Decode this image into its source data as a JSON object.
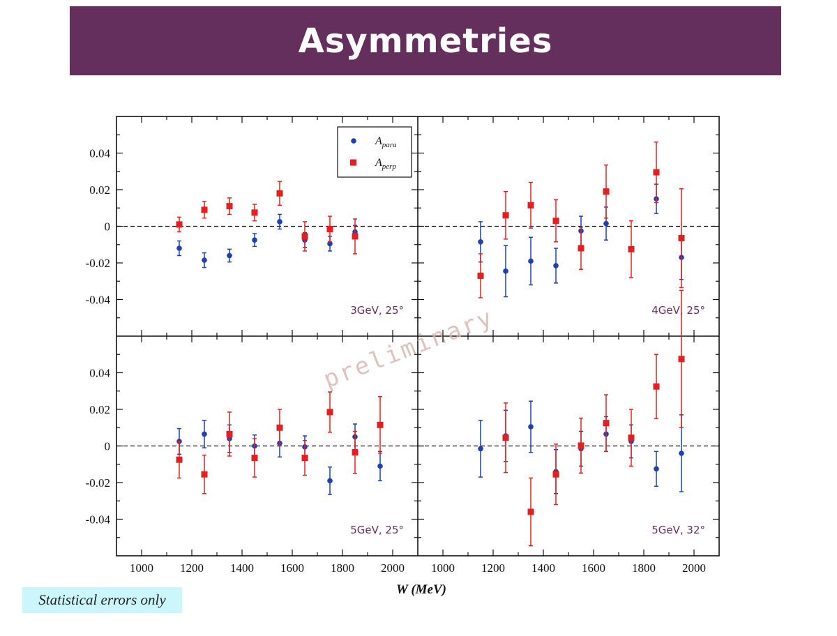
{
  "title": "Asymmetries",
  "note": "Statistical errors only",
  "watermark": "preliminary",
  "colors": {
    "banner": "#652f5d",
    "para": "#1f3fb5",
    "perp": "#e51f1f",
    "note_bg": "#cbf6fb",
    "panel_label": "#652f5d"
  },
  "chart_data": {
    "type": "scatter",
    "layout": "2x2 panels sharing axes",
    "xlabel": "W (MeV)",
    "ylabel": "",
    "xlim": [
      900,
      2100
    ],
    "ylim": [
      -0.06,
      0.06
    ],
    "xticks": [
      1000,
      1200,
      1400,
      1600,
      1800,
      2000
    ],
    "yticks": [
      -0.04,
      -0.02,
      0,
      0.02,
      0.04
    ],
    "ytick_labels": [
      "-0.04",
      "-0.02",
      "0",
      "0.02",
      "0.04"
    ],
    "zero_line": "dashed",
    "legend": {
      "placement": "top-right of top-left panel",
      "entries": [
        {
          "key": "para",
          "label": "A",
          "sub": "para",
          "marker": "circle"
        },
        {
          "key": "perp",
          "label": "A",
          "sub": "perp",
          "marker": "square"
        }
      ]
    },
    "panels": [
      {
        "label": "3GeV, 25°",
        "series": [
          {
            "key": "para",
            "x": [
              1150,
              1250,
              1350,
              1450,
              1550,
              1650,
              1750,
              1850
            ],
            "y": [
              -0.012,
              -0.0185,
              -0.016,
              -0.0075,
              0.0025,
              -0.0075,
              -0.0095,
              -0.003
            ],
            "err": [
              0.004,
              0.004,
              0.0035,
              0.0035,
              0.004,
              0.004,
              0.004,
              0.0035
            ]
          },
          {
            "key": "perp",
            "x": [
              1150,
              1250,
              1350,
              1450,
              1550,
              1650,
              1750,
              1850
            ],
            "y": [
              0.001,
              0.009,
              0.011,
              0.0075,
              0.018,
              -0.0055,
              -0.0015,
              -0.0055
            ],
            "err": [
              0.004,
              0.0045,
              0.0045,
              0.0045,
              0.0065,
              0.008,
              0.007,
              0.0095
            ]
          }
        ]
      },
      {
        "label": "4GeV, 25°",
        "series": [
          {
            "key": "para",
            "x": [
              1150,
              1250,
              1350,
              1450,
              1550,
              1650,
              1850,
              1950
            ],
            "y": [
              -0.0085,
              -0.0245,
              -0.019,
              -0.0215,
              -0.0025,
              0.0015,
              0.015,
              -0.017
            ],
            "err": [
              0.011,
              0.014,
              0.013,
              0.0095,
              0.008,
              0.009,
              0.008,
              0.012
            ]
          },
          {
            "key": "perp",
            "x": [
              1150,
              1250,
              1350,
              1450,
              1550,
              1650,
              1750,
              1850,
              1950
            ],
            "y": [
              -0.027,
              0.006,
              0.0115,
              0.003,
              -0.012,
              0.019,
              -0.0125,
              0.0295,
              -0.0065
            ],
            "err": [
              0.012,
              0.013,
              0.0125,
              0.0115,
              0.0115,
              0.0145,
              0.0155,
              0.0165,
              0.027
            ]
          }
        ]
      },
      {
        "label": "5GeV, 25°",
        "series": [
          {
            "key": "para",
            "x": [
              1150,
              1250,
              1350,
              1450,
              1550,
              1650,
              1750,
              1850,
              1950
            ],
            "y": [
              0.0025,
              0.0065,
              0.004,
              0.0,
              0.0015,
              -0.0005,
              -0.019,
              0.005,
              -0.011
            ],
            "err": [
              0.007,
              0.0075,
              0.0075,
              0.006,
              0.0075,
              0.006,
              0.0075,
              0.007,
              0.008
            ]
          },
          {
            "key": "perp",
            "x": [
              1150,
              1250,
              1350,
              1450,
              1550,
              1650,
              1750,
              1850,
              1950
            ],
            "y": [
              -0.0075,
              -0.0155,
              0.0065,
              -0.0065,
              0.01,
              -0.0065,
              0.0185,
              -0.0035,
              0.0115
            ],
            "err": [
              0.01,
              0.0105,
              0.012,
              0.0105,
              0.01,
              0.0095,
              0.011,
              0.0115,
              0.0155
            ]
          }
        ]
      },
      {
        "label": "5GeV, 32°",
        "series": [
          {
            "key": "para",
            "x": [
              1150,
              1250,
              1350,
              1450,
              1550,
              1650,
              1750,
              1850,
              1950
            ],
            "y": [
              -0.0015,
              0.0055,
              0.0105,
              -0.014,
              -0.0015,
              0.0065,
              0.0025,
              -0.0125,
              -0.004
            ],
            "err": [
              0.0155,
              0.014,
              0.014,
              0.012,
              0.0095,
              0.0095,
              0.009,
              0.0095,
              0.021
            ]
          },
          {
            "key": "perp",
            "x": [
              1250,
              1350,
              1450,
              1550,
              1650,
              1750,
              1850,
              1950
            ],
            "y": [
              0.0045,
              -0.036,
              -0.0155,
              0.0002,
              0.0125,
              0.0045,
              0.0325,
              0.0475
            ],
            "err": [
              0.019,
              0.0185,
              0.0165,
              0.015,
              0.0155,
              0.0155,
              0.0175,
              0.0375
            ]
          }
        ]
      }
    ]
  }
}
